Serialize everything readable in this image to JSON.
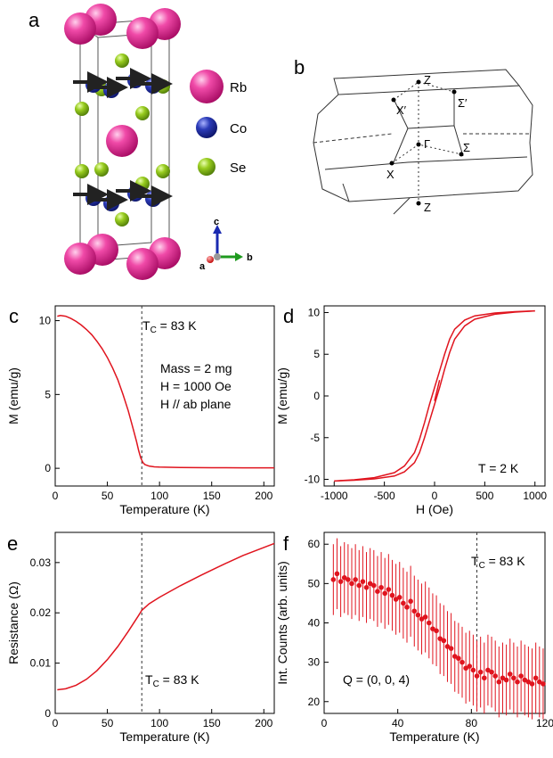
{
  "panels": {
    "a": {
      "label": "a",
      "legend": [
        {
          "name": "Rb",
          "color": "#e0128a"
        },
        {
          "name": "Co",
          "color": "#1f2fa0"
        },
        {
          "name": "Se",
          "color": "#8cc11a"
        }
      ],
      "axes": {
        "c": "c",
        "a": "a",
        "b": "b"
      }
    },
    "b": {
      "label": "b",
      "points": {
        "Z_top": "Z",
        "X_prime": "X′",
        "Sigma_prime": "Σ′",
        "Gamma": "Γ",
        "Sigma": "Σ",
        "X": "X",
        "Z_bottom": "Z"
      }
    },
    "c": {
      "label": "c",
      "annotations": {
        "tc": "T",
        "tc_sub": "C",
        "tc_rest": " = 83 K",
        "mass": "Mass = 2 mg",
        "field": "H = 1000 Oe",
        "orient": "H // ab plane"
      }
    },
    "d": {
      "label": "d",
      "annotations": {
        "temp": "T = 2 K"
      }
    },
    "e": {
      "label": "e",
      "annotations": {
        "tc": "T",
        "tc_sub": "C",
        "tc_rest": " = 83 K"
      }
    },
    "f": {
      "label": "f",
      "annotations": {
        "tc": "T",
        "tc_sub": "C",
        "tc_rest": " = 83 K",
        "q": "Q = (0, 0, 4)"
      }
    }
  },
  "chart_data": [
    {
      "id": "c",
      "type": "line",
      "xlabel": "Temperature (K)",
      "ylabel": "M (emu/g)",
      "xlim": [
        0,
        210
      ],
      "ylim": [
        -1.2,
        11
      ],
      "xticks": [
        0,
        50,
        100,
        150,
        200
      ],
      "yticks": [
        0,
        5,
        10
      ],
      "vline": 83,
      "color": "#e0141e",
      "series": [
        {
          "x": [
            2,
            5,
            10,
            15,
            20,
            25,
            30,
            35,
            40,
            45,
            50,
            55,
            60,
            65,
            70,
            75,
            78,
            80,
            82,
            84,
            86,
            90,
            95,
            100,
            120,
            150,
            180,
            210
          ],
          "y": [
            10.3,
            10.35,
            10.3,
            10.15,
            9.95,
            9.7,
            9.4,
            9.05,
            8.6,
            8.1,
            7.5,
            6.8,
            6.0,
            5.0,
            3.9,
            2.6,
            1.8,
            1.2,
            0.7,
            0.4,
            0.25,
            0.15,
            0.1,
            0.08,
            0.05,
            0.04,
            0.03,
            0.03
          ]
        }
      ]
    },
    {
      "id": "d",
      "type": "line",
      "xlabel": "H (Oe)",
      "ylabel": "M (emu/g)",
      "xlim": [
        -1100,
        1100
      ],
      "ylim": [
        -10.8,
        10.8
      ],
      "xticks": [
        -1000,
        -500,
        0,
        500,
        1000
      ],
      "yticks": [
        -10,
        -5,
        0,
        5,
        10
      ],
      "color": "#e0141e",
      "series": [
        {
          "x": [
            1000,
            800,
            600,
            400,
            300,
            200,
            150,
            100,
            50,
            0,
            -50,
            -100,
            -150,
            -200,
            -300,
            -400,
            -600,
            -800,
            -1000
          ],
          "y": [
            10.2,
            10.1,
            9.95,
            9.6,
            9.1,
            8.0,
            6.8,
            5.0,
            3.0,
            1.0,
            -1.0,
            -3.2,
            -5.2,
            -6.8,
            -8.4,
            -9.2,
            -9.8,
            -10.05,
            -10.2
          ]
        },
        {
          "x": [
            -1000,
            -800,
            -600,
            -400,
            -300,
            -200,
            -150,
            -100,
            -50,
            0,
            50,
            100,
            150,
            200,
            300,
            400,
            600,
            800,
            1000
          ],
          "y": [
            -10.2,
            -10.1,
            -9.95,
            -9.6,
            -9.1,
            -8.0,
            -6.8,
            -5.0,
            -3.0,
            -1.0,
            1.0,
            3.2,
            5.2,
            6.8,
            8.4,
            9.2,
            9.8,
            10.05,
            10.2
          ]
        },
        {
          "x": [
            0,
            10,
            20,
            30,
            50
          ],
          "y": [
            -0.6,
            -0.1,
            0.4,
            0.9,
            1.9
          ]
        }
      ]
    },
    {
      "id": "e",
      "type": "line",
      "xlabel": "Temperature (K)",
      "ylabel": "Resistance (Ω)",
      "xlim": [
        0,
        210
      ],
      "ylim": [
        0,
        0.036
      ],
      "xticks": [
        0,
        50,
        100,
        150,
        200
      ],
      "yticks": [
        0,
        0.01,
        0.02,
        0.03
      ],
      "yticklabels": [
        "0",
        "0.01",
        "0.02",
        "0.03"
      ],
      "vline": 83,
      "color": "#e0141e",
      "series": [
        {
          "x": [
            2,
            10,
            20,
            30,
            40,
            50,
            60,
            70,
            80,
            83,
            90,
            100,
            120,
            140,
            160,
            180,
            200,
            210
          ],
          "y": [
            0.0047,
            0.0049,
            0.0056,
            0.0068,
            0.0085,
            0.0107,
            0.0133,
            0.0163,
            0.0195,
            0.0205,
            0.0218,
            0.0231,
            0.0254,
            0.0275,
            0.0295,
            0.0314,
            0.033,
            0.0338
          ]
        }
      ]
    },
    {
      "id": "f",
      "type": "scatter",
      "xlabel": "Temperature (K)",
      "ylabel": "Int. Counts (arb. units)",
      "xlim": [
        0,
        120
      ],
      "ylim": [
        17,
        63
      ],
      "xticks": [
        0,
        40,
        80,
        120
      ],
      "yticks": [
        20,
        30,
        40,
        50,
        60
      ],
      "vline": 83,
      "color": "#e0141e",
      "error": 9,
      "series": [
        {
          "x": [
            5,
            7,
            9,
            11,
            13,
            15,
            17,
            19,
            21,
            23,
            25,
            27,
            29,
            31,
            33,
            35,
            37,
            39,
            41,
            43,
            45,
            47,
            49,
            51,
            53,
            55,
            57,
            59,
            61,
            63,
            65,
            67,
            69,
            71,
            73,
            75,
            77,
            79,
            81,
            83,
            85,
            87,
            89,
            91,
            93,
            95,
            97,
            99,
            101,
            103,
            105,
            107,
            109,
            111,
            113,
            115,
            117,
            119
          ],
          "y": [
            51,
            52.5,
            50.5,
            51.5,
            51,
            50,
            51,
            49.5,
            50.5,
            49,
            50,
            49.5,
            48,
            49,
            47.5,
            48.5,
            47,
            46,
            46.5,
            45,
            44,
            45.5,
            43,
            42,
            41,
            41.5,
            40,
            38.5,
            38,
            36,
            35.5,
            34,
            33.5,
            31.5,
            31,
            30,
            28.5,
            29,
            28,
            26.5,
            27.5,
            26,
            28,
            27.5,
            26.5,
            25,
            26,
            25.5,
            27,
            26,
            25,
            26.5,
            25.5,
            25,
            24.5,
            26,
            25,
            24.5
          ]
        }
      ]
    }
  ]
}
